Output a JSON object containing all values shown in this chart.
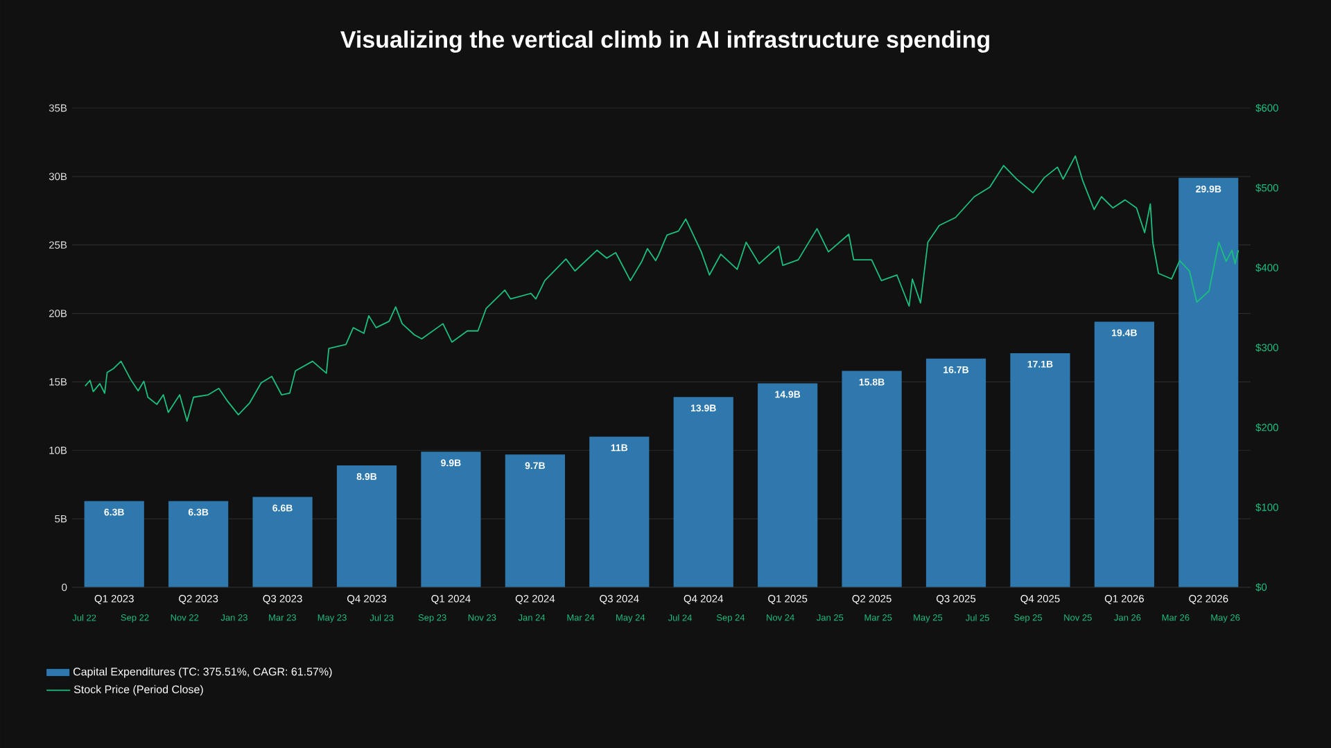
{
  "chart_data": [
    {
      "type": "bar",
      "title": "Visualizing the vertical climb in AI infrastructure spending",
      "categories": [
        "Q1 2023",
        "Q2 2023",
        "Q3 2023",
        "Q4 2023",
        "Q1 2024",
        "Q2 2024",
        "Q3 2024",
        "Q4 2024",
        "Q1 2025",
        "Q2 2025",
        "Q3 2025",
        "Q4 2025",
        "Q1 2026",
        "Q2 2026"
      ],
      "series": [
        {
          "name": "Capital Expenditures (TC: 375.51%, CAGR: 61.57%)",
          "type": "bar",
          "color": "#2e78ad",
          "values": [
            6.3,
            6.3,
            6.6,
            8.9,
            9.9,
            9.7,
            11,
            13.9,
            14.9,
            15.8,
            16.7,
            17.1,
            19.4,
            29.9
          ],
          "value_labels": [
            "6.3B",
            "6.3B",
            "6.6B",
            "8.9B",
            "9.9B",
            "9.7B",
            "11B",
            "13.9B",
            "14.9B",
            "15.8B",
            "16.7B",
            "17.1B",
            "19.4B",
            "29.9B"
          ]
        }
      ],
      "ylim": [
        0,
        35
      ],
      "yticks": [
        0,
        {
          "value": 5,
          "label": "5B"
        },
        {
          "value": 10,
          "label": "10B"
        },
        {
          "value": 15,
          "label": "15B"
        },
        {
          "value": 20,
          "label": "20B"
        },
        {
          "value": 25,
          "label": "25B"
        },
        {
          "value": 30,
          "label": "30B"
        },
        {
          "value": 35,
          "label": "35B"
        }
      ],
      "grid": "y",
      "legend": "bottom left"
    },
    {
      "type": "line",
      "series": [
        {
          "name": "Stock Price (Period Close)",
          "type": "line",
          "color": "#1dbf7f",
          "x": [
            "2022-07-02",
            "2022-07-08",
            "2022-07-12",
            "2022-07-20",
            "2022-07-26",
            "2022-07-29",
            "2022-08-06",
            "2022-08-15",
            "2022-08-27",
            "2022-09-05",
            "2022-09-12",
            "2022-09-17",
            "2022-09-28",
            "2022-10-06",
            "2022-10-12",
            "2022-10-26",
            "2022-11-04",
            "2022-11-12",
            "2022-11-30",
            "2022-12-13",
            "2022-12-23",
            "2023-01-06",
            "2023-01-20",
            "2023-02-03",
            "2023-02-16",
            "2023-02-28",
            "2023-03-10",
            "2023-03-17",
            "2023-04-07",
            "2023-04-24",
            "2023-04-27",
            "2023-05-18",
            "2023-05-27",
            "2023-06-09",
            "2023-06-15",
            "2023-06-24",
            "2023-07-10",
            "2023-07-18",
            "2023-07-26",
            "2023-08-10",
            "2023-08-19",
            "2023-09-14",
            "2023-09-25",
            "2023-10-14",
            "2023-10-27",
            "2023-11-06",
            "2023-11-29",
            "2023-12-06",
            "2023-12-31",
            "2024-01-06",
            "2024-01-17",
            "2024-02-12",
            "2024-02-23",
            "2024-03-21",
            "2024-04-02",
            "2024-04-13",
            "2024-05-01",
            "2024-05-15",
            "2024-05-22",
            "2024-06-01",
            "2024-06-05",
            "2024-06-12",
            "2024-06-15",
            "2024-06-29",
            "2024-07-08",
            "2024-07-15",
            "2024-07-27",
            "2024-08-06",
            "2024-08-20",
            "2024-09-09",
            "2024-09-20",
            "2024-10-06",
            "2024-10-30",
            "2024-11-04",
            "2024-11-23",
            "2024-12-16",
            "2024-12-30",
            "2025-01-24",
            "2025-01-30",
            "2025-02-21",
            "2025-03-05",
            "2025-03-24",
            "2025-04-08",
            "2025-04-12",
            "2025-04-22",
            "2025-05-01",
            "2025-05-15",
            "2025-06-04",
            "2025-06-27",
            "2025-07-16",
            "2025-08-02",
            "2025-08-18",
            "2025-09-07",
            "2025-09-21",
            "2025-10-07",
            "2025-10-14",
            "2025-10-29",
            "2025-11-07",
            "2025-11-21",
            "2025-11-30",
            "2025-12-14",
            "2025-12-29",
            "2026-01-12",
            "2026-01-22",
            "2026-01-29",
            "2026-02-01",
            "2026-02-08",
            "2026-02-24",
            "2026-03-06",
            "2026-03-18",
            "2026-03-27",
            "2026-04-11",
            "2026-04-23",
            "2026-05-02",
            "2026-05-09",
            "2026-05-13",
            "2026-05-17"
          ],
          "values": [
            252,
            259,
            245,
            255,
            243,
            269,
            274,
            283,
            260,
            246,
            258,
            238,
            229,
            241,
            219,
            241,
            208,
            238,
            241,
            249,
            234,
            216,
            231,
            256,
            264,
            241,
            243,
            271,
            283,
            268,
            299,
            304,
            325,
            318,
            340,
            325,
            333,
            351,
            330,
            316,
            311,
            330,
            307,
            321,
            321,
            349,
            372,
            361,
            368,
            361,
            384,
            411,
            396,
            422,
            412,
            419,
            384,
            408,
            424,
            409,
            417,
            434,
            441,
            446,
            461,
            446,
            420,
            391,
            417,
            398,
            432,
            405,
            427,
            403,
            410,
            449,
            420,
            442,
            410,
            410,
            384,
            391,
            352,
            386,
            356,
            432,
            453,
            463,
            489,
            501,
            528,
            511,
            494,
            513,
            526,
            511,
            540,
            509,
            473,
            489,
            475,
            485,
            475,
            444,
            480,
            432,
            393,
            386,
            409,
            396,
            357,
            371,
            432,
            408,
            422,
            405,
            422
          ]
        }
      ],
      "xlim": [
        "2022-06-16",
        "2026-06-01"
      ],
      "xticks": [
        {
          "value": "2022-07-01",
          "label": "Jul 22"
        },
        {
          "value": "2022-09-01",
          "label": "Sep 22"
        },
        {
          "value": "2022-11-01",
          "label": "Nov 22"
        },
        {
          "value": "2023-01-01",
          "label": "Jan 23"
        },
        {
          "value": "2023-03-01",
          "label": "Mar 23"
        },
        {
          "value": "2023-05-01",
          "label": "May 23"
        },
        {
          "value": "2023-07-01",
          "label": "Jul 23"
        },
        {
          "value": "2023-09-01",
          "label": "Sep 23"
        },
        {
          "value": "2023-11-01",
          "label": "Nov 23"
        },
        {
          "value": "2024-01-01",
          "label": "Jan 24"
        },
        {
          "value": "2024-03-01",
          "label": "Mar 24"
        },
        {
          "value": "2024-05-01",
          "label": "May 24"
        },
        {
          "value": "2024-07-01",
          "label": "Jul 24"
        },
        {
          "value": "2024-09-01",
          "label": "Sep 24"
        },
        {
          "value": "2024-11-01",
          "label": "Nov 24"
        },
        {
          "value": "2025-01-01",
          "label": "Jan 25"
        },
        {
          "value": "2025-03-01",
          "label": "Mar 25"
        },
        {
          "value": "2025-05-01",
          "label": "May 25"
        },
        {
          "value": "2025-07-01",
          "label": "Jul 25"
        },
        {
          "value": "2025-09-01",
          "label": "Sep 25"
        },
        {
          "value": "2025-11-01",
          "label": "Nov 25"
        },
        {
          "value": "2026-01-01",
          "label": "Jan 26"
        },
        {
          "value": "2026-03-01",
          "label": "Mar 26"
        },
        {
          "value": "2026-05-01",
          "label": "May 26"
        }
      ],
      "ylim": [
        0,
        600
      ],
      "yticks": [
        {
          "value": 0,
          "label": "$0"
        },
        {
          "value": 100,
          "label": "$100"
        },
        {
          "value": 200,
          "label": "$200"
        },
        {
          "value": 300,
          "label": "$300"
        },
        {
          "value": 400,
          "label": "$400"
        },
        {
          "value": 500,
          "label": "$500"
        },
        {
          "value": 600,
          "label": "$600"
        }
      ],
      "legend": "bottom left",
      "marker": "none",
      "line_style": "solid"
    }
  ]
}
